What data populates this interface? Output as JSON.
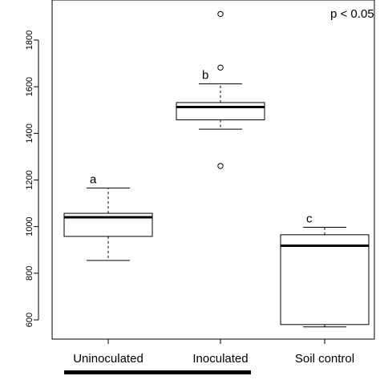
{
  "chart_data": {
    "type": "box",
    "title": "",
    "xlabel": "",
    "ylabel": "",
    "ylim": [
      575,
      1950
    ],
    "yticks": [
      600,
      800,
      1000,
      1200,
      1400,
      1600,
      1800
    ],
    "annotation": "p < 0.05",
    "groups": [
      {
        "label": "Uninoculated",
        "letter": "a",
        "whisker_low": 855,
        "q1": 958,
        "median": 1040,
        "q3": 1057,
        "whisker_high": 1165,
        "outliers": []
      },
      {
        "label": "Inoculated",
        "letter": "b",
        "whisker_low": 1418,
        "q1": 1458,
        "median": 1513,
        "q3": 1532,
        "whisker_high": 1612,
        "outliers": [
          1912,
          1682,
          1260
        ]
      },
      {
        "label": "Soil control",
        "letter": "c",
        "whisker_low": 570,
        "q1": 580,
        "median": 918,
        "q3": 965,
        "whisker_high": 997,
        "outliers": []
      }
    ]
  },
  "colors": {
    "box": "#000000",
    "median": "#000000",
    "underline_bar": "#000000"
  }
}
